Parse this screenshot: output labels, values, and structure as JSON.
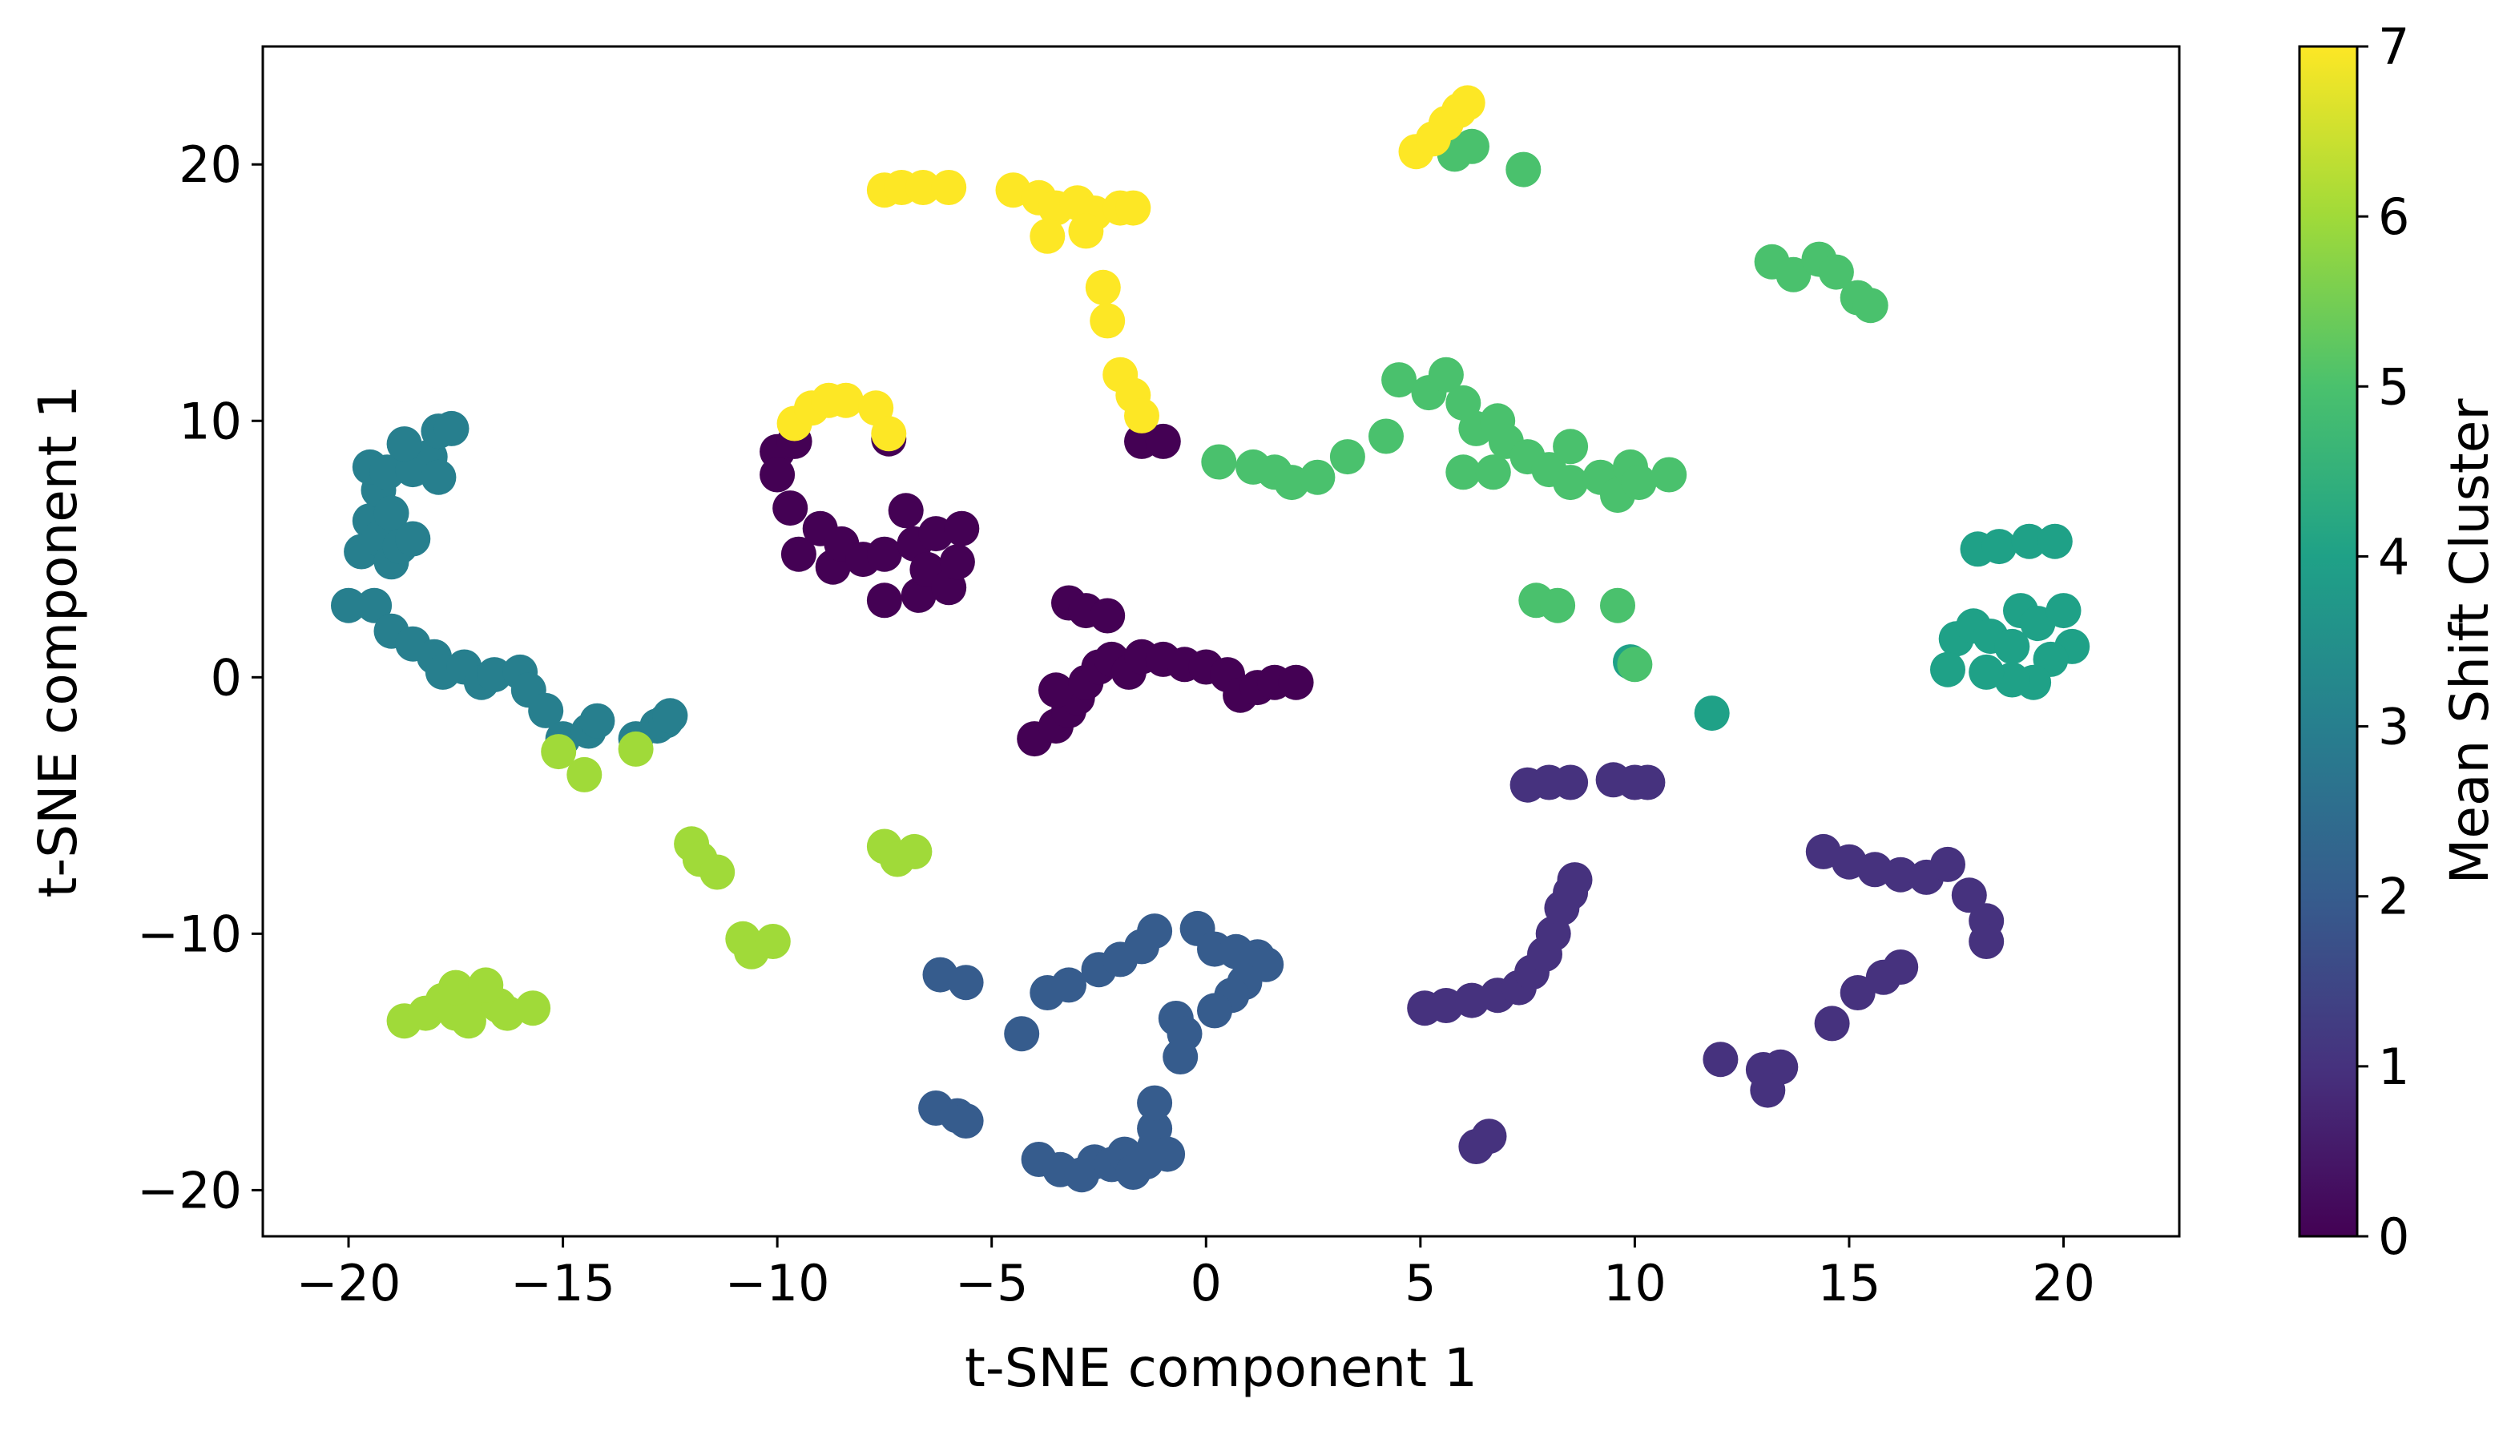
{
  "chart_data": {
    "type": "scatter",
    "title": "",
    "xlabel": "t-SNE component 1",
    "ylabel": "t-SNE component 1",
    "xlim": [
      -22,
      22.7
    ],
    "ylim": [
      -21.8,
      24.6
    ],
    "xticks": [
      -20,
      -15,
      -10,
      -5,
      0,
      5,
      10,
      15,
      20
    ],
    "yticks": [
      -20,
      -10,
      0,
      10,
      20
    ],
    "grid": false,
    "colorbar": {
      "label": "Mean Shift Cluster",
      "colormap": "viridis",
      "range": [
        0,
        7
      ],
      "ticks": [
        0,
        1,
        2,
        3,
        4,
        5,
        6,
        7
      ],
      "stops": [
        "#440154",
        "#46327e",
        "#365c8d",
        "#277f8e",
        "#1fa187",
        "#4ac16d",
        "#a0da39",
        "#fde725"
      ]
    },
    "series": [
      {
        "cluster": 0,
        "color": "#440154",
        "points": [
          [
            -10,
            8.8
          ],
          [
            -10,
            7.9
          ],
          [
            -9.7,
            6.6
          ],
          [
            -9.6,
            9.2
          ],
          [
            -9.5,
            4.8
          ],
          [
            -9,
            5.8
          ],
          [
            -8.7,
            4.3
          ],
          [
            -8.5,
            5.2
          ],
          [
            -8,
            4.6
          ],
          [
            -7.5,
            4.8
          ],
          [
            -7.5,
            3
          ],
          [
            -7,
            6.5
          ],
          [
            -6.8,
            5.2
          ],
          [
            -6.7,
            3.2
          ],
          [
            -6.5,
            4.2
          ],
          [
            -6.3,
            5.6
          ],
          [
            -6,
            3.5
          ],
          [
            -5.8,
            4.5
          ],
          [
            -5.7,
            5.8
          ],
          [
            -7.4,
            9.3
          ],
          [
            -1.5,
            9.2
          ],
          [
            -1,
            9.2
          ],
          [
            -4,
            -2.4
          ],
          [
            -3.5,
            -1.9
          ],
          [
            -3.2,
            -1.3
          ],
          [
            -3,
            -0.8
          ],
          [
            -3.5,
            -0.5
          ],
          [
            -2.8,
            -0.2
          ],
          [
            -2.5,
            0.4
          ],
          [
            -2.2,
            0.7
          ],
          [
            -1.8,
            0.2
          ],
          [
            -1.5,
            0.8
          ],
          [
            -3.2,
            2.9
          ],
          [
            -2.8,
            2.6
          ],
          [
            -2.3,
            2.4
          ],
          [
            -1,
            0.7
          ],
          [
            -0.5,
            0.5
          ],
          [
            0,
            0.4
          ],
          [
            0.5,
            0.1
          ],
          [
            0.8,
            -0.7
          ],
          [
            1.2,
            -0.4
          ],
          [
            1.6,
            -0.2
          ],
          [
            2.1,
            -0.2
          ]
        ]
      },
      {
        "cluster": 1,
        "color": "#46327e",
        "points": [
          [
            7.5,
            -4.2
          ],
          [
            8,
            -4.1
          ],
          [
            8.5,
            -4.1
          ],
          [
            9.5,
            -4
          ],
          [
            10,
            -4.1
          ],
          [
            10.3,
            -4.1
          ],
          [
            5.1,
            -12.9
          ],
          [
            5.6,
            -12.8
          ],
          [
            6.2,
            -12.6
          ],
          [
            6.8,
            -12.4
          ],
          [
            7.3,
            -12.1
          ],
          [
            7.6,
            -11.5
          ],
          [
            7.9,
            -10.8
          ],
          [
            8.1,
            -10
          ],
          [
            8.3,
            -9
          ],
          [
            8.5,
            -8.4
          ],
          [
            8.6,
            -7.9
          ],
          [
            6.3,
            -18.3
          ],
          [
            6.6,
            -17.9
          ],
          [
            14.4,
            -6.8
          ],
          [
            15,
            -7.2
          ],
          [
            15.6,
            -7.5
          ],
          [
            16.2,
            -7.7
          ],
          [
            16.8,
            -7.8
          ],
          [
            17.3,
            -7.3
          ],
          [
            17.8,
            -8.5
          ],
          [
            18.2,
            -9.5
          ],
          [
            18.2,
            -10.3
          ],
          [
            15.2,
            -12.3
          ],
          [
            15.8,
            -11.7
          ],
          [
            16.2,
            -11.3
          ],
          [
            14.6,
            -13.5
          ],
          [
            12,
            -14.9
          ],
          [
            13,
            -15.3
          ],
          [
            13.4,
            -15.2
          ],
          [
            13.1,
            -16.1
          ]
        ]
      },
      {
        "cluster": 2,
        "color": "#365c8d",
        "points": [
          [
            -6.2,
            -11.6
          ],
          [
            -5.6,
            -11.9
          ],
          [
            -4.3,
            -13.9
          ],
          [
            -3.7,
            -12.3
          ],
          [
            -3.2,
            -12
          ],
          [
            -2.5,
            -11.4
          ],
          [
            -2,
            -11
          ],
          [
            -1.5,
            -10.5
          ],
          [
            -1.2,
            -9.9
          ],
          [
            -0.2,
            -9.8
          ],
          [
            0.2,
            -10.6
          ],
          [
            0.7,
            -10.7
          ],
          [
            1.2,
            -10.9
          ],
          [
            1.4,
            -11.2
          ],
          [
            0.9,
            -11.9
          ],
          [
            0.6,
            -12.4
          ],
          [
            0.2,
            -13
          ],
          [
            -0.7,
            -13.3
          ],
          [
            -0.5,
            -13.9
          ],
          [
            -0.6,
            -14.8
          ],
          [
            -6.3,
            -16.8
          ],
          [
            -5.8,
            -17.1
          ],
          [
            -5.6,
            -17.3
          ],
          [
            -3.9,
            -18.8
          ],
          [
            -3.4,
            -19.2
          ],
          [
            -2.9,
            -19.4
          ],
          [
            -2.6,
            -18.9
          ],
          [
            -2.2,
            -19
          ],
          [
            -1.9,
            -18.6
          ],
          [
            -1.7,
            -19.3
          ],
          [
            -1.4,
            -18.9
          ],
          [
            -1.2,
            -18.3
          ],
          [
            -1.2,
            -17.6
          ],
          [
            -1.2,
            -16.6
          ],
          [
            -0.9,
            -18.6
          ]
        ]
      },
      {
        "cluster": 3,
        "color": "#277f8e",
        "points": [
          [
            -19.7,
            4.9
          ],
          [
            -19.5,
            6.1
          ],
          [
            -19.3,
            5.4
          ],
          [
            -19,
            4.5
          ],
          [
            -19.3,
            7.3
          ],
          [
            -19.5,
            8.2
          ],
          [
            -19.1,
            8
          ],
          [
            -19,
            6.4
          ],
          [
            -18.8,
            5.1
          ],
          [
            -18.5,
            8.1
          ],
          [
            -18.1,
            8.6
          ],
          [
            -17.9,
            7.8
          ],
          [
            -18.7,
            9.1
          ],
          [
            -17.9,
            9.6
          ],
          [
            -17.6,
            9.7
          ],
          [
            -18.5,
            5.4
          ],
          [
            -20,
            2.8
          ],
          [
            -19.4,
            2.8
          ],
          [
            -19,
            1.8
          ],
          [
            -18.5,
            1.3
          ],
          [
            -18,
            0.8
          ],
          [
            -17.8,
            0.2
          ],
          [
            -17.3,
            0.4
          ],
          [
            -16.9,
            -0.2
          ],
          [
            -16.6,
            0.1
          ],
          [
            -16,
            0.2
          ],
          [
            -15.8,
            -0.5
          ],
          [
            -15.4,
            -1.3
          ],
          [
            -15,
            -2.4
          ],
          [
            -14.4,
            -2.1
          ],
          [
            -14.2,
            -1.7
          ],
          [
            -13.3,
            -2.4
          ],
          [
            -12.8,
            -1.9
          ],
          [
            -12.6,
            -1.7
          ],
          [
            -12.5,
            -1.5
          ]
        ]
      },
      {
        "cluster": 4,
        "color": "#1fa187",
        "points": [
          [
            18,
            5
          ],
          [
            18.5,
            5.1
          ],
          [
            19.2,
            5.3
          ],
          [
            19.8,
            5.3
          ],
          [
            17.5,
            1.5
          ],
          [
            17.9,
            2
          ],
          [
            18.3,
            1.6
          ],
          [
            18.8,
            1.2
          ],
          [
            19,
            2.6
          ],
          [
            19.4,
            2.1
          ],
          [
            20,
            2.6
          ],
          [
            20.2,
            1.2
          ],
          [
            19.7,
            0.7
          ],
          [
            19.3,
            -0.2
          ],
          [
            18.8,
            -0.1
          ],
          [
            18.2,
            0.2
          ],
          [
            17.3,
            0.3
          ],
          [
            9.9,
            0.6
          ],
          [
            11.8,
            -1.4
          ]
        ]
      },
      {
        "cluster": 5,
        "color": "#4ac16d",
        "points": [
          [
            0.3,
            8.4
          ],
          [
            1.1,
            8.2
          ],
          [
            1.6,
            8
          ],
          [
            2,
            7.6
          ],
          [
            2.6,
            7.8
          ],
          [
            3.3,
            8.6
          ],
          [
            4.2,
            9.4
          ],
          [
            4.5,
            11.6
          ],
          [
            5.2,
            11.1
          ],
          [
            5.6,
            11.8
          ],
          [
            6,
            10.7
          ],
          [
            6.3,
            9.7
          ],
          [
            6.8,
            10
          ],
          [
            7,
            9.2
          ],
          [
            7.5,
            8.6
          ],
          [
            8,
            8.1
          ],
          [
            8.5,
            7.6
          ],
          [
            9.2,
            7.8
          ],
          [
            9.6,
            7.1
          ],
          [
            9.9,
            8.2
          ],
          [
            10.1,
            7.6
          ],
          [
            10.8,
            7.9
          ],
          [
            8.5,
            9
          ],
          [
            6,
            8
          ],
          [
            6.7,
            8
          ],
          [
            13.2,
            16.2
          ],
          [
            13.7,
            15.7
          ],
          [
            14.3,
            16.3
          ],
          [
            14.7,
            15.8
          ],
          [
            15.2,
            14.8
          ],
          [
            15.5,
            14.5
          ],
          [
            5.8,
            20.4
          ],
          [
            6.2,
            20.7
          ],
          [
            7.4,
            19.8
          ],
          [
            7.7,
            3
          ],
          [
            8.2,
            2.8
          ],
          [
            9.6,
            2.8
          ],
          [
            10,
            0.5
          ]
        ]
      },
      {
        "cluster": 6,
        "color": "#a0da39",
        "points": [
          [
            -18.7,
            -13.4
          ],
          [
            -18.2,
            -13.1
          ],
          [
            -17.8,
            -12.6
          ],
          [
            -17.5,
            -13.1
          ],
          [
            -17.2,
            -13.4
          ],
          [
            -16.9,
            -12.4
          ],
          [
            -16.5,
            -12.8
          ],
          [
            -16.3,
            -13.1
          ],
          [
            -15.7,
            -12.9
          ],
          [
            -17.5,
            -12.1
          ],
          [
            -16.8,
            -12
          ],
          [
            -12,
            -6.5
          ],
          [
            -11.8,
            -7.1
          ],
          [
            -11.4,
            -7.6
          ],
          [
            -10.8,
            -10.2
          ],
          [
            -10.6,
            -10.7
          ],
          [
            -10.1,
            -10.3
          ],
          [
            -7.5,
            -6.6
          ],
          [
            -7.2,
            -7.1
          ],
          [
            -6.8,
            -6.8
          ],
          [
            -15.1,
            -2.9
          ],
          [
            -14.5,
            -3.8
          ],
          [
            -13.3,
            -2.8
          ]
        ]
      },
      {
        "cluster": 7,
        "color": "#fde725",
        "points": [
          [
            -7.5,
            19
          ],
          [
            -7.1,
            19.1
          ],
          [
            -6.6,
            19.1
          ],
          [
            -6,
            19.1
          ],
          [
            -4.5,
            19
          ],
          [
            -3.9,
            18.7
          ],
          [
            -3.5,
            18.3
          ],
          [
            -3,
            18.5
          ],
          [
            -2.6,
            18.1
          ],
          [
            -2,
            18.3
          ],
          [
            -1.7,
            18.3
          ],
          [
            -3.7,
            17.2
          ],
          [
            -2.8,
            17.4
          ],
          [
            -2.4,
            15.2
          ],
          [
            -2.3,
            13.9
          ],
          [
            -2,
            11.8
          ],
          [
            -1.7,
            11
          ],
          [
            -1.5,
            10.2
          ],
          [
            -9.6,
            9.9
          ],
          [
            -9.2,
            10.5
          ],
          [
            -8.8,
            10.8
          ],
          [
            -8.4,
            10.8
          ],
          [
            -7.7,
            10.5
          ],
          [
            -7.4,
            9.5
          ],
          [
            4.9,
            20.5
          ],
          [
            5.3,
            21
          ],
          [
            5.6,
            21.6
          ],
          [
            5.9,
            22.1
          ],
          [
            6.1,
            22.4
          ]
        ]
      }
    ]
  }
}
